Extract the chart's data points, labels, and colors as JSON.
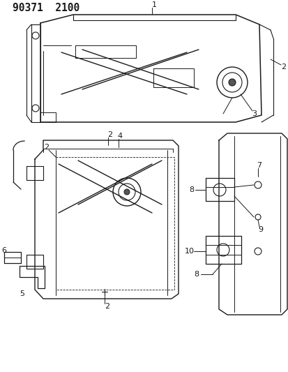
{
  "title": "90371  2100",
  "bg_color": "#ffffff",
  "line_color": "#1a1a1a",
  "label_color": "#000000",
  "label_fontsize": 8.0,
  "title_fontsize": 10.5,
  "fig_width": 4.14,
  "fig_height": 5.33,
  "dpi": 100
}
